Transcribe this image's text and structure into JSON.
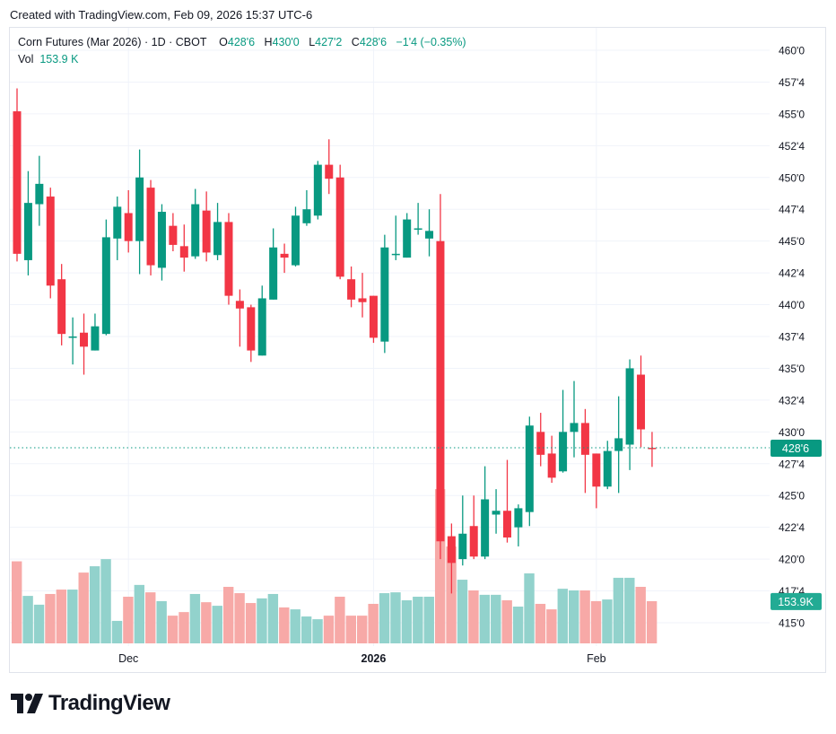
{
  "created_text": "Created with TradingView.com, Feb 09, 2026 15:37 UTC-6",
  "legend": {
    "symbol": "Corn Futures (Mar 2026) · 1D · CBOT",
    "o_label": "O",
    "o": "428'6",
    "h_label": "H",
    "h": "430'0",
    "l_label": "L",
    "l": "427'2",
    "c_label": "C",
    "c": "428'6",
    "change": "−1'4 (−0.35%)",
    "vol_label": "Vol",
    "vol": "153.9 K"
  },
  "brand": "TradingView",
  "colors": {
    "up": "#089981",
    "down": "#f23645",
    "vol_up": "#92d2cc",
    "vol_down": "#f7a9a7",
    "grid": "#f0f3fa"
  },
  "chart_data": {
    "type": "candlestick",
    "title": "Corn Futures (Mar 2026) · 1D · CBOT",
    "ylim": [
      415,
      460
    ],
    "y_ticks": [
      460,
      457.5,
      455,
      452.5,
      450,
      447.5,
      445,
      442.5,
      440,
      437.5,
      435,
      432.5,
      430,
      427.5,
      425,
      422.5,
      420,
      417.5,
      415
    ],
    "y_tick_labels": [
      "460'0",
      "457'4",
      "455'0",
      "452'4",
      "450'0",
      "447'4",
      "445'0",
      "442'4",
      "440'0",
      "437'4",
      "435'0",
      "432'4",
      "430'0",
      "427'4",
      "425'0",
      "422'4",
      "420'0",
      "417'4",
      "415'0"
    ],
    "x_labels": [
      {
        "label": "Dec",
        "index": 10,
        "bold": false
      },
      {
        "label": "2026",
        "index": 32,
        "bold": true
      },
      {
        "label": "Feb",
        "index": 52,
        "bold": false
      }
    ],
    "last_price_label": "428'6",
    "last_price": 428.75,
    "last_volume_label": "153.9K",
    "volume_unit": "K",
    "candles_ohlcv": [
      [
        455.2,
        457.0,
        443.4,
        444.0,
        299
      ],
      [
        443.5,
        450.5,
        442.3,
        448.0,
        173
      ],
      [
        447.9,
        451.7,
        446.2,
        449.5,
        141
      ],
      [
        448.5,
        449.2,
        440.5,
        441.5,
        180
      ],
      [
        442.0,
        443.2,
        436.8,
        437.7,
        196
      ],
      [
        437.4,
        439.0,
        435.3,
        437.5,
        196
      ],
      [
        437.8,
        439.3,
        434.5,
        436.7,
        258
      ],
      [
        436.4,
        439.3,
        436.4,
        438.3,
        281
      ],
      [
        437.7,
        446.7,
        437.6,
        445.3,
        307
      ],
      [
        445.2,
        448.5,
        443.5,
        447.7,
        82
      ],
      [
        447.2,
        449.0,
        444.1,
        445.0,
        170
      ],
      [
        445.0,
        452.2,
        442.4,
        450.0,
        213
      ],
      [
        449.2,
        449.8,
        442.3,
        443.1,
        186
      ],
      [
        442.9,
        447.9,
        441.9,
        447.3,
        154
      ],
      [
        446.2,
        447.2,
        444.2,
        444.7,
        101
      ],
      [
        444.6,
        446.3,
        442.6,
        443.7,
        114
      ],
      [
        443.8,
        449.1,
        443.6,
        447.9,
        180
      ],
      [
        447.4,
        448.9,
        443.4,
        444.1,
        150
      ],
      [
        443.9,
        448.0,
        443.5,
        446.5,
        137
      ],
      [
        446.5,
        447.2,
        440.0,
        440.7,
        206
      ],
      [
        440.3,
        441.2,
        436.7,
        439.7,
        183
      ],
      [
        439.8,
        440.0,
        435.5,
        436.4,
        147
      ],
      [
        436.0,
        441.5,
        436.0,
        440.5,
        164
      ],
      [
        440.4,
        446.0,
        440.4,
        444.5,
        180
      ],
      [
        444.0,
        444.8,
        442.5,
        443.7,
        131
      ],
      [
        443.1,
        447.7,
        443.0,
        447.0,
        124
      ],
      [
        446.4,
        449.0,
        446.2,
        447.5,
        98
      ],
      [
        447.0,
        451.3,
        446.7,
        451.0,
        88
      ],
      [
        451.0,
        453.0,
        448.7,
        449.9,
        101
      ],
      [
        450.0,
        451.0,
        442.0,
        442.2,
        170
      ],
      [
        442.0,
        443.0,
        439.8,
        440.4,
        101
      ],
      [
        440.5,
        442.5,
        439.0,
        440.2,
        101
      ],
      [
        440.7,
        440.7,
        437.0,
        437.4,
        144
      ],
      [
        437.1,
        445.5,
        436.2,
        444.5,
        183
      ],
      [
        443.9,
        447.0,
        443.5,
        444.0,
        186
      ],
      [
        443.7,
        447.2,
        443.7,
        446.7,
        157
      ],
      [
        445.9,
        448.0,
        445.5,
        446.0,
        170
      ],
      [
        445.2,
        447.5,
        443.8,
        445.8,
        170
      ],
      [
        445.0,
        448.7,
        420.0,
        421.4,
        562
      ],
      [
        421.8,
        422.8,
        417.3,
        419.7,
        353
      ],
      [
        420.0,
        425.0,
        419.5,
        422.0,
        232
      ],
      [
        422.6,
        425.0,
        420.0,
        420.2,
        193
      ],
      [
        420.2,
        427.3,
        420.0,
        424.7,
        177
      ],
      [
        423.5,
        425.5,
        422.0,
        423.8,
        177
      ],
      [
        423.8,
        427.8,
        421.3,
        421.7,
        157
      ],
      [
        422.5,
        424.3,
        421.0,
        424.0,
        134
      ],
      [
        423.7,
        431.2,
        422.6,
        430.5,
        255
      ],
      [
        430.0,
        431.5,
        427.3,
        428.2,
        144
      ],
      [
        428.3,
        429.7,
        426.0,
        426.4,
        124
      ],
      [
        426.9,
        433.3,
        426.8,
        430.0,
        199
      ],
      [
        430.0,
        434.0,
        428.0,
        430.7,
        193
      ],
      [
        430.7,
        431.8,
        425.2,
        428.2,
        193
      ],
      [
        428.3,
        428.3,
        424.0,
        425.7,
        154
      ],
      [
        425.7,
        429.3,
        425.5,
        428.5,
        160
      ],
      [
        428.5,
        432.8,
        425.2,
        429.5,
        239
      ],
      [
        429.0,
        435.7,
        427.0,
        435.0,
        239
      ],
      [
        434.5,
        436.0,
        428.8,
        430.2,
        206
      ],
      [
        428.75,
        430.0,
        427.25,
        428.74,
        153.9
      ]
    ]
  }
}
